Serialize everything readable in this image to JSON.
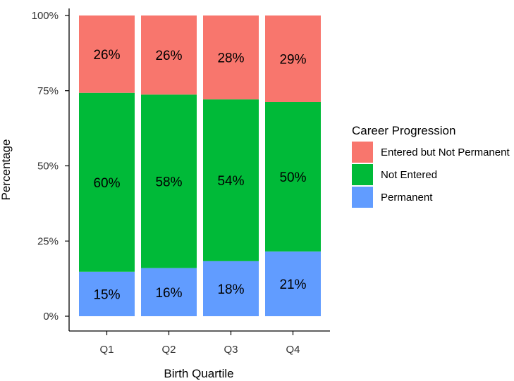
{
  "chart_data": {
    "type": "bar",
    "stacked": true,
    "categories": [
      "Q1",
      "Q2",
      "Q3",
      "Q4"
    ],
    "series": [
      {
        "name": "Permanent",
        "color": "#619cff",
        "values": [
          14.8,
          16.0,
          18.3,
          21.5
        ],
        "labels": [
          "15%",
          "16%",
          "18%",
          "21%"
        ]
      },
      {
        "name": "Not Entered",
        "color": "#00ba38",
        "values": [
          59.5,
          57.7,
          53.8,
          49.7
        ],
        "labels": [
          "60%",
          "58%",
          "54%",
          "50%"
        ]
      },
      {
        "name": "Entered but Not Permanent",
        "color": "#f8766d",
        "values": [
          25.7,
          26.3,
          27.9,
          28.8
        ],
        "labels": [
          "26%",
          "26%",
          "28%",
          "29%"
        ]
      }
    ],
    "legend_order": [
      "Entered but Not Permanent",
      "Not Entered",
      "Permanent"
    ],
    "title": "",
    "xlabel": "Birth Quartile",
    "ylabel": "Percentage",
    "ylim": [
      0,
      100
    ],
    "yticks": [
      0,
      25,
      50,
      75,
      100
    ],
    "ytick_labels": [
      "0%",
      "25%",
      "50%",
      "75%",
      "100%"
    ],
    "legend_title": "Career Progression",
    "legend_position": "right",
    "grid": false
  }
}
